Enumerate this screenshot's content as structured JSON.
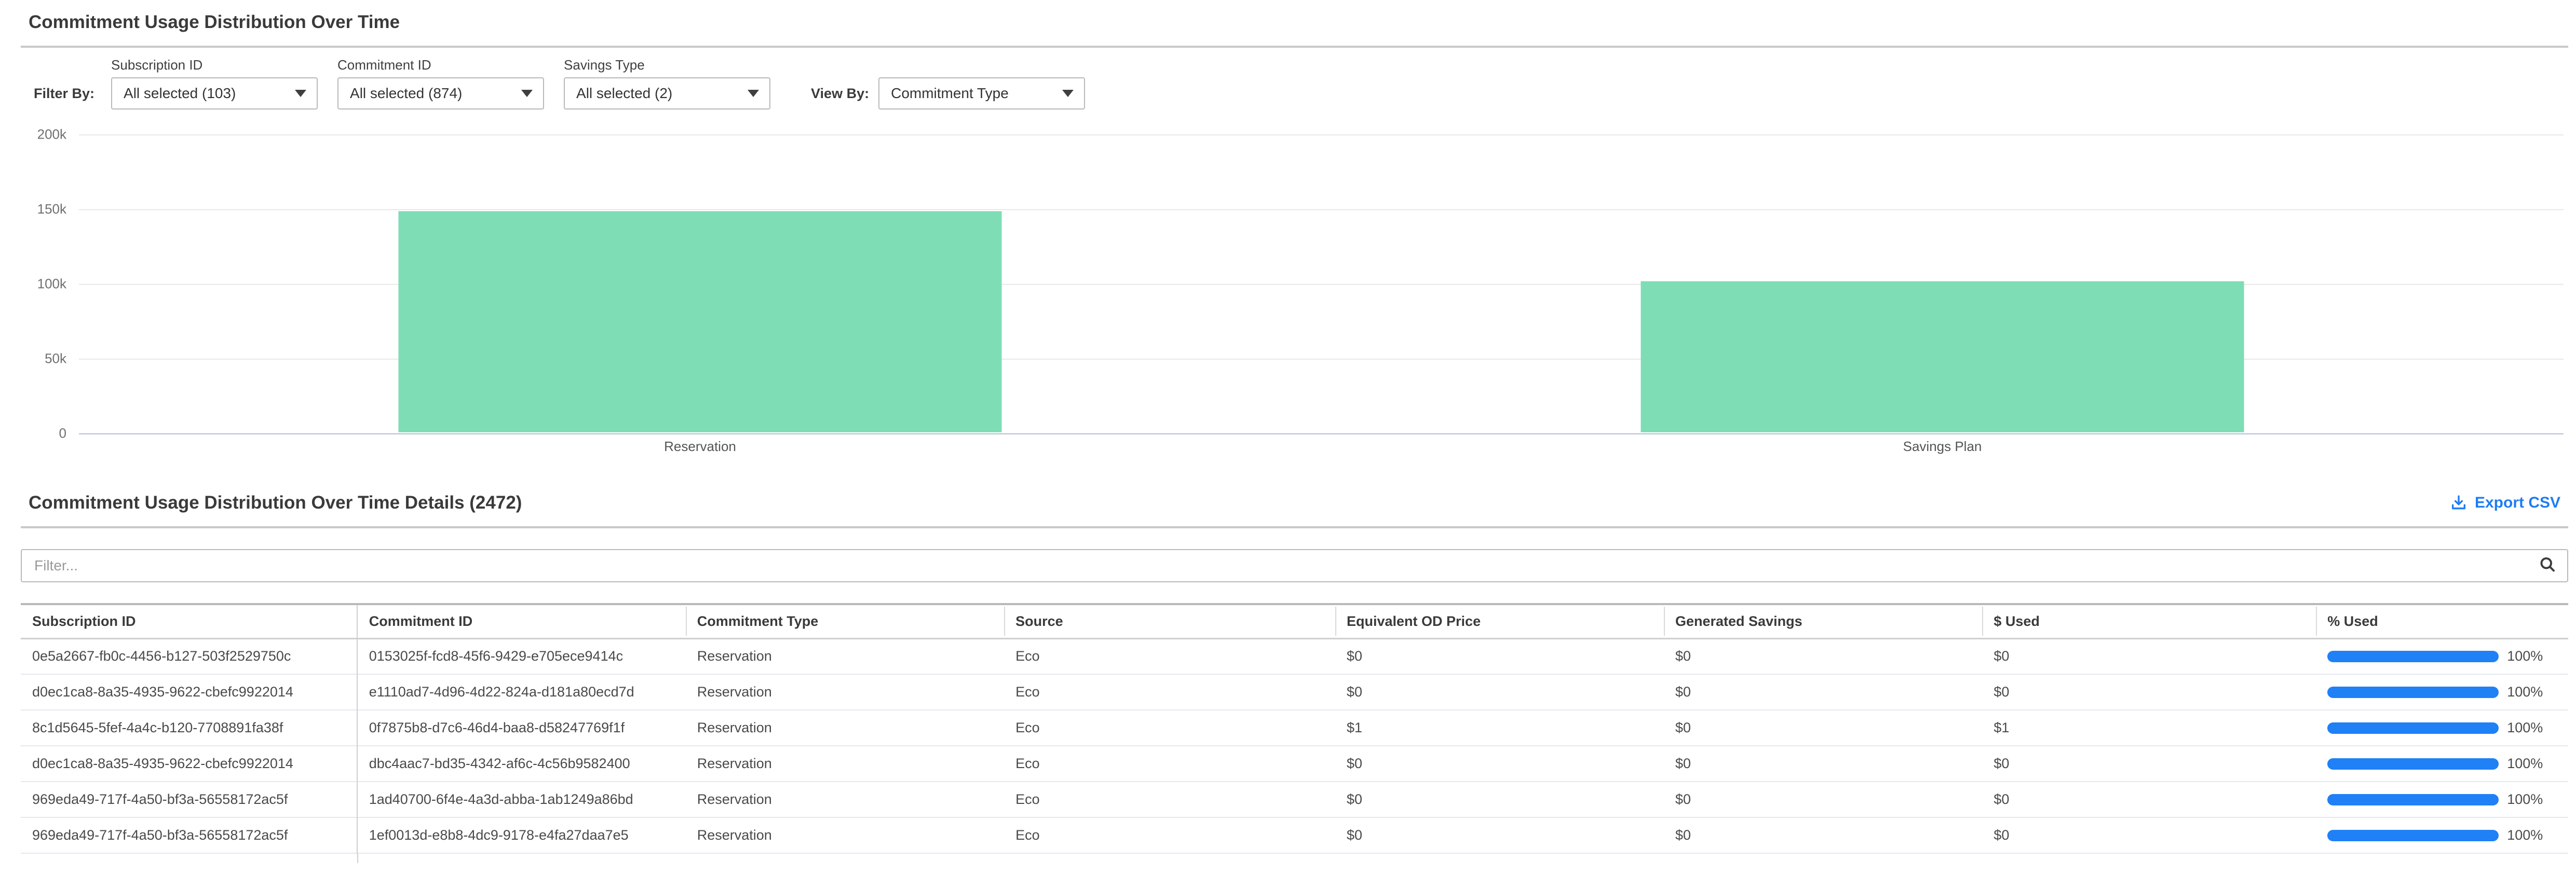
{
  "header": {
    "title": "Commitment Usage Distribution Over Time"
  },
  "filters": {
    "filter_by_label": "Filter By:",
    "view_by_label": "View By:",
    "dropdowns": [
      {
        "label": "Subscription ID",
        "value": "All selected (103)"
      },
      {
        "label": "Commitment ID",
        "value": "All selected (874)"
      },
      {
        "label": "Savings Type",
        "value": "All selected (2)"
      }
    ],
    "view_by": {
      "value": "Commitment Type"
    }
  },
  "chart_data": {
    "type": "bar",
    "title": "",
    "xlabel": "",
    "ylabel": "",
    "categories": [
      "Reservation",
      "Savings Plan"
    ],
    "values": [
      148000,
      101000
    ],
    "ylim": [
      0,
      200000
    ],
    "yticks": [
      200000,
      150000,
      100000,
      50000,
      0
    ],
    "ytick_labels": [
      "200k",
      "150k",
      "100k",
      "50k",
      "0"
    ],
    "grid": true,
    "legend": "none",
    "bar_color": "#7eddb5"
  },
  "details": {
    "title": "Commitment Usage Distribution Over Time Details (2472)",
    "export_label": "Export CSV",
    "filter_placeholder": "Filter...",
    "table": {
      "columns": [
        "Subscription ID",
        "Commitment ID",
        "Commitment Type",
        "Source",
        "Equivalent OD Price",
        "Generated Savings",
        "$ Used",
        "% Used"
      ],
      "column_widths_pct": [
        13.2,
        12.9,
        12.5,
        13.0,
        12.9,
        12.5,
        13.1,
        9.9
      ],
      "rows": [
        {
          "cells": [
            "0e5a2667-fb0c-4456-b127-503f2529750c",
            "0153025f-fcd8-45f6-9429-e705ece9414c",
            "Reservation",
            "Eco",
            "$0",
            "$0",
            "$0"
          ],
          "pct": 100,
          "pct_label": "100%"
        },
        {
          "cells": [
            "d0ec1ca8-8a35-4935-9622-cbefc9922014",
            "e1110ad7-4d96-4d22-824a-d181a80ecd7d",
            "Reservation",
            "Eco",
            "$0",
            "$0",
            "$0"
          ],
          "pct": 100,
          "pct_label": "100%"
        },
        {
          "cells": [
            "8c1d5645-5fef-4a4c-b120-7708891fa38f",
            "0f7875b8-d7c6-46d4-baa8-d58247769f1f",
            "Reservation",
            "Eco",
            "$1",
            "$0",
            "$1"
          ],
          "pct": 100,
          "pct_label": "100%"
        },
        {
          "cells": [
            "d0ec1ca8-8a35-4935-9622-cbefc9922014",
            "dbc4aac7-bd35-4342-af6c-4c56b9582400",
            "Reservation",
            "Eco",
            "$0",
            "$0",
            "$0"
          ],
          "pct": 100,
          "pct_label": "100%"
        },
        {
          "cells": [
            "969eda49-717f-4a50-bf3a-56558172ac5f",
            "1ad40700-6f4e-4a3d-abba-1ab1249a86bd",
            "Reservation",
            "Eco",
            "$0",
            "$0",
            "$0"
          ],
          "pct": 100,
          "pct_label": "100%"
        },
        {
          "cells": [
            "969eda49-717f-4a50-bf3a-56558172ac5f",
            "1ef0013d-e8b8-4dc9-9178-e4fa27daa7e5",
            "Reservation",
            "Eco",
            "$0",
            "$0",
            "$0"
          ],
          "pct": 100,
          "pct_label": "100%"
        }
      ]
    }
  },
  "colors": {
    "accent_blue": "#1f7cf4",
    "bar_green": "#7eddb5",
    "progress_blue": "#2080f5",
    "gridline": "#e9e9e9",
    "zero_line": "#b3bfdc"
  }
}
